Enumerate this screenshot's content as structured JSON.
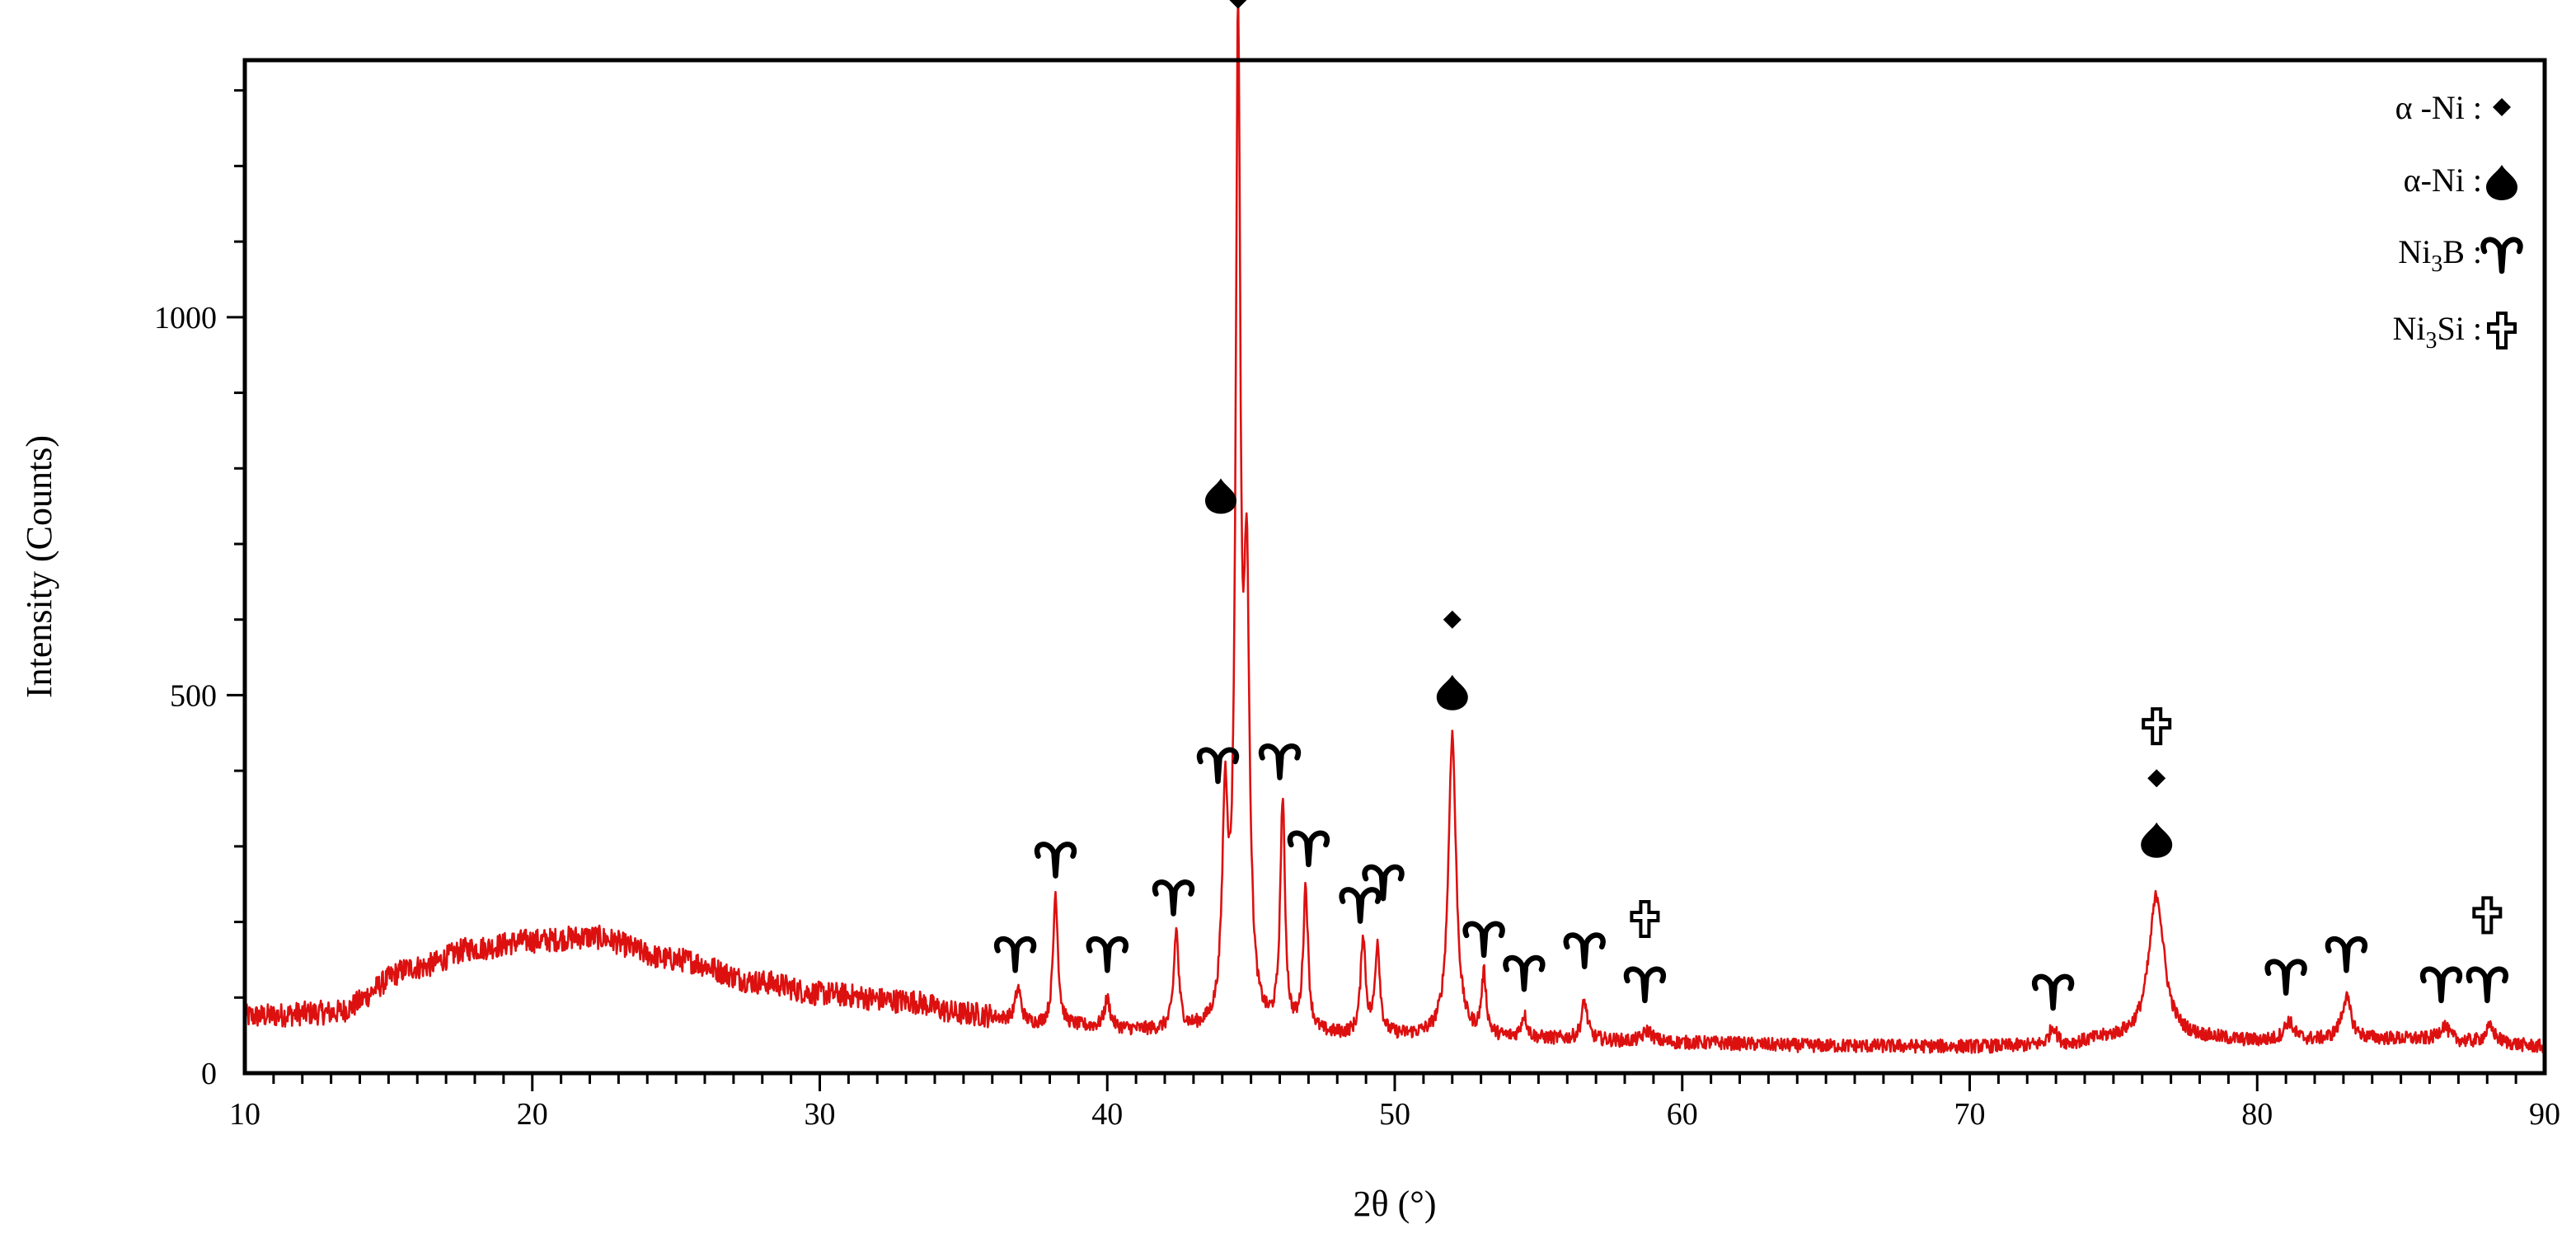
{
  "chart_data": {
    "type": "line",
    "xlabel": "2θ (°)",
    "ylabel": "Intensity (Counts)",
    "xlim": [
      10,
      90
    ],
    "ylim": [
      0,
      1340
    ],
    "x_ticks": [
      10,
      20,
      30,
      40,
      50,
      60,
      70,
      80,
      90
    ],
    "y_ticks": [
      0,
      500,
      1000
    ],
    "grid": false,
    "line_color": "#dd1010",
    "series": [
      {
        "baseline": [
          [
            10,
            75
          ],
          [
            13,
            80
          ],
          [
            16,
            140
          ],
          [
            18,
            165
          ],
          [
            20,
            175
          ],
          [
            22,
            180
          ],
          [
            25,
            150
          ],
          [
            28,
            120
          ],
          [
            30,
            105
          ],
          [
            33,
            95
          ],
          [
            35,
            78
          ],
          [
            38,
            62
          ],
          [
            42,
            55
          ],
          [
            45,
            50
          ],
          [
            50,
            48
          ],
          [
            55,
            45
          ],
          [
            60,
            40
          ],
          [
            65,
            36
          ],
          [
            70,
            35
          ],
          [
            73,
            36
          ],
          [
            75,
            45
          ],
          [
            78,
            45
          ],
          [
            80,
            42
          ],
          [
            85,
            45
          ],
          [
            88,
            40
          ],
          [
            90,
            35
          ]
        ],
        "peaks": [
          {
            "x": 36.9,
            "y": 45,
            "w": 0.12
          },
          {
            "x": 38.2,
            "y": 175,
            "w": 0.1
          },
          {
            "x": 40.0,
            "y": 38,
            "w": 0.12
          },
          {
            "x": 42.4,
            "y": 130,
            "w": 0.1
          },
          {
            "x": 44.1,
            "y": 280,
            "w": 0.12
          },
          {
            "x": 44.55,
            "y": 1280,
            "w": 0.1
          },
          {
            "x": 44.85,
            "y": 550,
            "w": 0.12
          },
          {
            "x": 46.1,
            "y": 300,
            "w": 0.1
          },
          {
            "x": 46.9,
            "y": 190,
            "w": 0.1
          },
          {
            "x": 48.9,
            "y": 130,
            "w": 0.1
          },
          {
            "x": 49.4,
            "y": 120,
            "w": 0.1
          },
          {
            "x": 52.0,
            "y": 400,
            "w": 0.16
          },
          {
            "x": 53.1,
            "y": 80,
            "w": 0.1
          },
          {
            "x": 54.5,
            "y": 30,
            "w": 0.12
          },
          {
            "x": 56.6,
            "y": 50,
            "w": 0.12
          },
          {
            "x": 58.8,
            "y": 15,
            "w": 0.2
          },
          {
            "x": 72.9,
            "y": 25,
            "w": 0.15
          },
          {
            "x": 76.5,
            "y": 190,
            "w": 0.32
          },
          {
            "x": 81.1,
            "y": 25,
            "w": 0.2
          },
          {
            "x": 83.1,
            "y": 55,
            "w": 0.2
          },
          {
            "x": 86.5,
            "y": 20,
            "w": 0.2
          },
          {
            "x": 88.1,
            "y": 20,
            "w": 0.2
          }
        ]
      }
    ],
    "legend": {
      "position": "top-right",
      "entries": [
        {
          "label": "α -Ni :",
          "symbol": "diamond"
        },
        {
          "label": "α-Ni :",
          "symbol": "drop"
        },
        {
          "label_main": "Ni",
          "label_sub": "3",
          "label_rest": "B :",
          "symbol": "aries"
        },
        {
          "label_main": "Ni",
          "label_sub": "3",
          "label_rest": "Si :",
          "symbol": "cross"
        }
      ]
    },
    "annotations": [
      {
        "symbol": "diamond",
        "x": 44.55,
        "y": 1420
      },
      {
        "symbol": "drop",
        "x": 43.95,
        "y": 765
      },
      {
        "symbol": "aries",
        "x": 36.8,
        "y": 160
      },
      {
        "symbol": "aries",
        "x": 38.2,
        "y": 285
      },
      {
        "symbol": "aries",
        "x": 40.0,
        "y": 160
      },
      {
        "symbol": "aries",
        "x": 42.3,
        "y": 235
      },
      {
        "symbol": "aries",
        "x": 43.85,
        "y": 410
      },
      {
        "symbol": "aries",
        "x": 46.0,
        "y": 415
      },
      {
        "symbol": "aries",
        "x": 47.0,
        "y": 300
      },
      {
        "symbol": "aries",
        "x": 48.8,
        "y": 225
      },
      {
        "symbol": "aries",
        "x": 49.6,
        "y": 255
      },
      {
        "symbol": "diamond",
        "x": 52.0,
        "y": 600
      },
      {
        "symbol": "drop",
        "x": 52.0,
        "y": 505
      },
      {
        "symbol": "aries",
        "x": 53.1,
        "y": 180
      },
      {
        "symbol": "aries",
        "x": 54.5,
        "y": 135
      },
      {
        "symbol": "aries",
        "x": 56.6,
        "y": 165
      },
      {
        "symbol": "cross",
        "x": 58.7,
        "y": 205
      },
      {
        "symbol": "aries",
        "x": 58.7,
        "y": 120
      },
      {
        "symbol": "aries",
        "x": 72.9,
        "y": 110
      },
      {
        "symbol": "cross",
        "x": 76.5,
        "y": 460
      },
      {
        "symbol": "diamond",
        "x": 76.5,
        "y": 390
      },
      {
        "symbol": "drop",
        "x": 76.5,
        "y": 310
      },
      {
        "symbol": "aries",
        "x": 81.0,
        "y": 130
      },
      {
        "symbol": "aries",
        "x": 83.1,
        "y": 160
      },
      {
        "symbol": "aries",
        "x": 86.4,
        "y": 120
      },
      {
        "symbol": "aries",
        "x": 88.0,
        "y": 120
      },
      {
        "symbol": "cross",
        "x": 88.0,
        "y": 210
      }
    ]
  }
}
